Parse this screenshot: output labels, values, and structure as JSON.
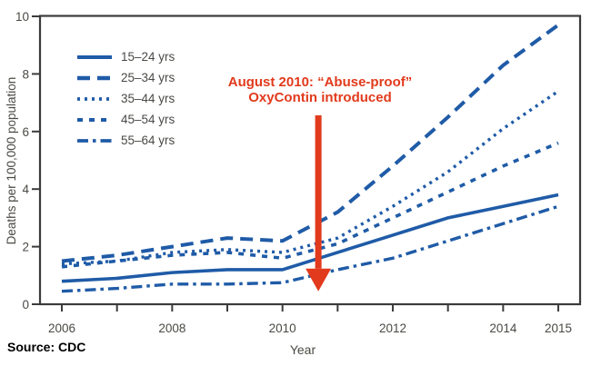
{
  "figure": {
    "y_axis_label": "Deaths per 100,000 population",
    "x_axis_label": "Year",
    "source_label": "Source: CDC",
    "annotation": {
      "line1": "August 2010: “Abuse-proof”",
      "line2": "OxyContin introduced",
      "arrow_year": 2010.65,
      "arrow_tip_value": 0.45,
      "color": "#e23a1c"
    },
    "colors": {
      "line_blue": "#1f5ba7",
      "frame": "#3b3b3b",
      "tick_label": "#4a4944",
      "source_text": "#000000",
      "background": "#ffffff"
    }
  },
  "chart_data": {
    "type": "line",
    "title": "",
    "xlabel": "Year",
    "ylabel": "Deaths per 100,000 population",
    "x": [
      2006,
      2007,
      2008,
      2009,
      2010,
      2011,
      2012,
      2013,
      2014,
      2015
    ],
    "x_tick_years": [
      2006,
      2007,
      2008,
      2009,
      2010,
      2011,
      2012,
      2013,
      2014,
      2015
    ],
    "x_labeled_ticks": [
      "2006",
      "2008",
      "2010",
      "2012",
      "2014",
      "2015"
    ],
    "ylim": [
      0,
      10
    ],
    "y_ticks": [
      "0",
      "2",
      "4",
      "6",
      "8",
      "10"
    ],
    "grid": false,
    "legend_position": "upper-left-inside",
    "series": [
      {
        "name": "15–24 yrs",
        "dash": "solid",
        "values": [
          0.8,
          0.9,
          1.1,
          1.2,
          1.2,
          1.8,
          2.4,
          3.0,
          3.4,
          3.8
        ]
      },
      {
        "name": "25–34 yrs",
        "dash": "long-dash",
        "values": [
          1.5,
          1.7,
          2.0,
          2.3,
          2.2,
          3.2,
          4.8,
          6.5,
          8.3,
          9.7
        ]
      },
      {
        "name": "35–44 yrs",
        "dash": "dotted",
        "values": [
          1.4,
          1.5,
          1.8,
          1.9,
          1.8,
          2.3,
          3.4,
          4.6,
          6.1,
          7.4
        ]
      },
      {
        "name": "45–54 yrs",
        "dash": "short-dash",
        "values": [
          1.3,
          1.5,
          1.7,
          1.8,
          1.6,
          2.1,
          3.0,
          3.9,
          4.8,
          5.6
        ]
      },
      {
        "name": "55–64 yrs",
        "dash": "dash-dot",
        "values": [
          0.45,
          0.55,
          0.7,
          0.7,
          0.75,
          1.2,
          1.6,
          2.2,
          2.8,
          3.4
        ]
      }
    ],
    "annotation_text": "August 2010: “Abuse-proof” OxyContin introduced"
  }
}
